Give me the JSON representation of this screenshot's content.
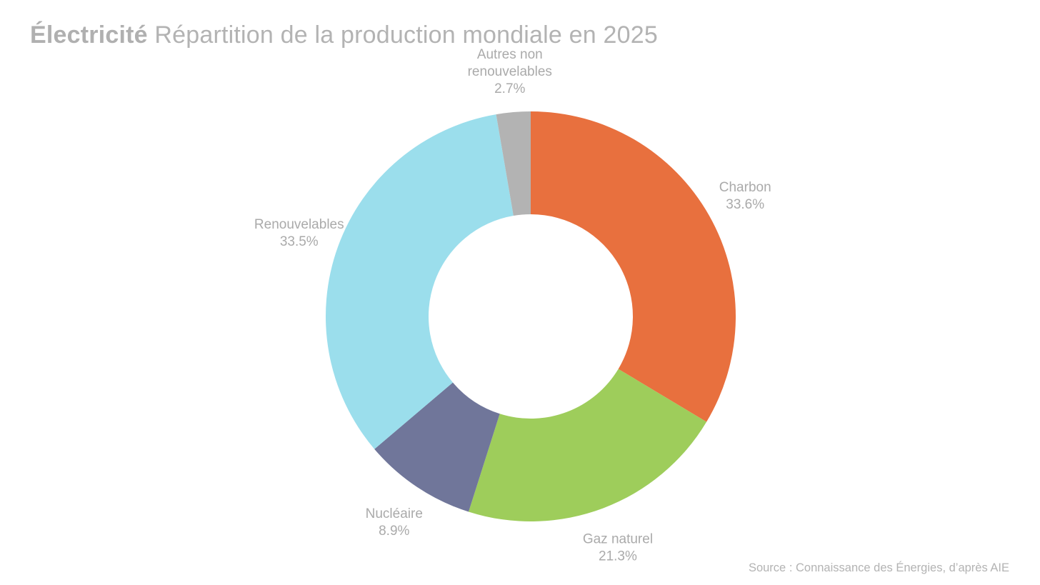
{
  "title": {
    "bold": "Électricité",
    "rest": "Répartition de la production mondiale en 2025"
  },
  "source": "Source : Connaissance des Énergies, d’après AIE",
  "chart_data": {
    "type": "pie",
    "variant": "donut",
    "title": "Électricité Répartition de la production mondiale en 2025",
    "slices": [
      {
        "label": [
          "Charbon"
        ],
        "value": 33.6,
        "display": "33.6%",
        "color": "#e8703e"
      },
      {
        "label": [
          "Gaz naturel"
        ],
        "value": 21.3,
        "display": "21.3%",
        "color": "#9ecd5b"
      },
      {
        "label": [
          "Nucléaire"
        ],
        "value": 8.9,
        "display": "8.9%",
        "color": "#70769a"
      },
      {
        "label": [
          "Renouvelables"
        ],
        "value": 33.5,
        "display": "33.5%",
        "color": "#9bdeec"
      },
      {
        "label": [
          "Autres non",
          "renouvelables"
        ],
        "value": 2.7,
        "display": "2.7%",
        "color": "#b3b3b3"
      }
    ],
    "start": "top",
    "direction": "clockwise",
    "legend": "none",
    "data_labels": "outside"
  }
}
